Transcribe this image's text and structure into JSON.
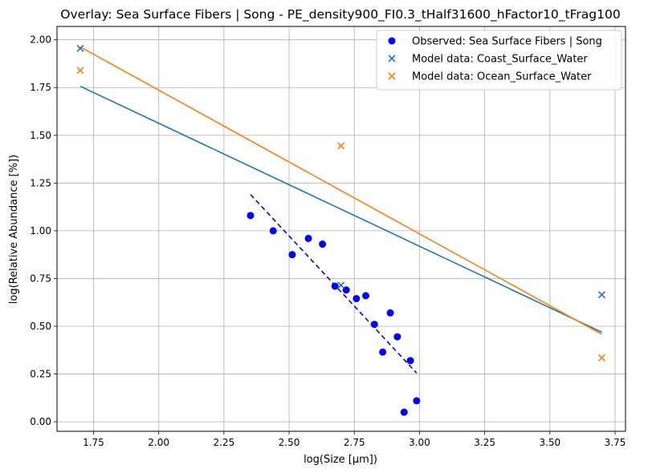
{
  "chart_data": {
    "type": "scatter",
    "title": "Overlay: Sea Surface Fibers | Song - PE_density900_FI0.3_tHalf31600_hFactor10_tFrag100",
    "xlabel": "log(Size [µm])",
    "ylabel": "log(Relative Abundance [%])",
    "xlim": [
      1.61,
      3.79
    ],
    "ylim": [
      -0.05,
      2.07
    ],
    "xticks": [
      1.75,
      2.0,
      2.25,
      2.5,
      2.75,
      3.0,
      3.25,
      3.5,
      3.75
    ],
    "xtick_labels": [
      "1.75",
      "2.00",
      "2.25",
      "2.50",
      "2.75",
      "3.00",
      "3.25",
      "3.50",
      "3.75"
    ],
    "yticks": [
      0.0,
      0.25,
      0.5,
      0.75,
      1.0,
      1.25,
      1.5,
      1.75,
      2.0
    ],
    "ytick_labels": [
      "0.00",
      "0.25",
      "0.50",
      "0.75",
      "1.00",
      "1.25",
      "1.50",
      "1.75",
      "2.00"
    ],
    "grid": true,
    "legend_position": "top-right",
    "series": [
      {
        "name": "Observed: Sea Surface Fibers | Song",
        "kind": "scatter",
        "marker": "circle",
        "color": "#0000ff",
        "points": [
          [
            2.352,
            1.08
          ],
          [
            2.439,
            1.0
          ],
          [
            2.512,
            0.875
          ],
          [
            2.574,
            0.96
          ],
          [
            2.628,
            0.93
          ],
          [
            2.676,
            0.71
          ],
          [
            2.719,
            0.69
          ],
          [
            2.758,
            0.645
          ],
          [
            2.794,
            0.66
          ],
          [
            2.827,
            0.51
          ],
          [
            2.859,
            0.365
          ],
          [
            2.888,
            0.57
          ],
          [
            2.915,
            0.445
          ],
          [
            2.941,
            0.05
          ],
          [
            2.965,
            0.32
          ],
          [
            2.989,
            0.11
          ]
        ]
      },
      {
        "name": "",
        "kind": "fit-line",
        "dashed": true,
        "color": "#0000ff",
        "points": [
          [
            2.352,
            1.19
          ],
          [
            2.989,
            0.255
          ]
        ]
      },
      {
        "name": "Model data: Coast_Surface_Water",
        "kind": "scatter",
        "marker": "x",
        "color": "#1f77b4",
        "points": [
          [
            1.699,
            1.955
          ],
          [
            2.699,
            0.715
          ],
          [
            3.699,
            0.665
          ]
        ]
      },
      {
        "name": "",
        "kind": "fit-line",
        "dashed": false,
        "color": "#1f77b4",
        "points": [
          [
            1.699,
            1.757
          ],
          [
            3.699,
            0.469
          ]
        ]
      },
      {
        "name": "Model data: Ocean_Surface_Water",
        "kind": "scatter",
        "marker": "x",
        "color": "#ff7f0e",
        "points": [
          [
            1.699,
            1.84
          ],
          [
            2.699,
            1.445
          ],
          [
            3.699,
            0.335
          ]
        ]
      },
      {
        "name": "",
        "kind": "fit-line",
        "dashed": false,
        "color": "#ff7f0e",
        "points": [
          [
            1.699,
            1.963
          ],
          [
            3.699,
            0.458
          ]
        ]
      }
    ]
  }
}
